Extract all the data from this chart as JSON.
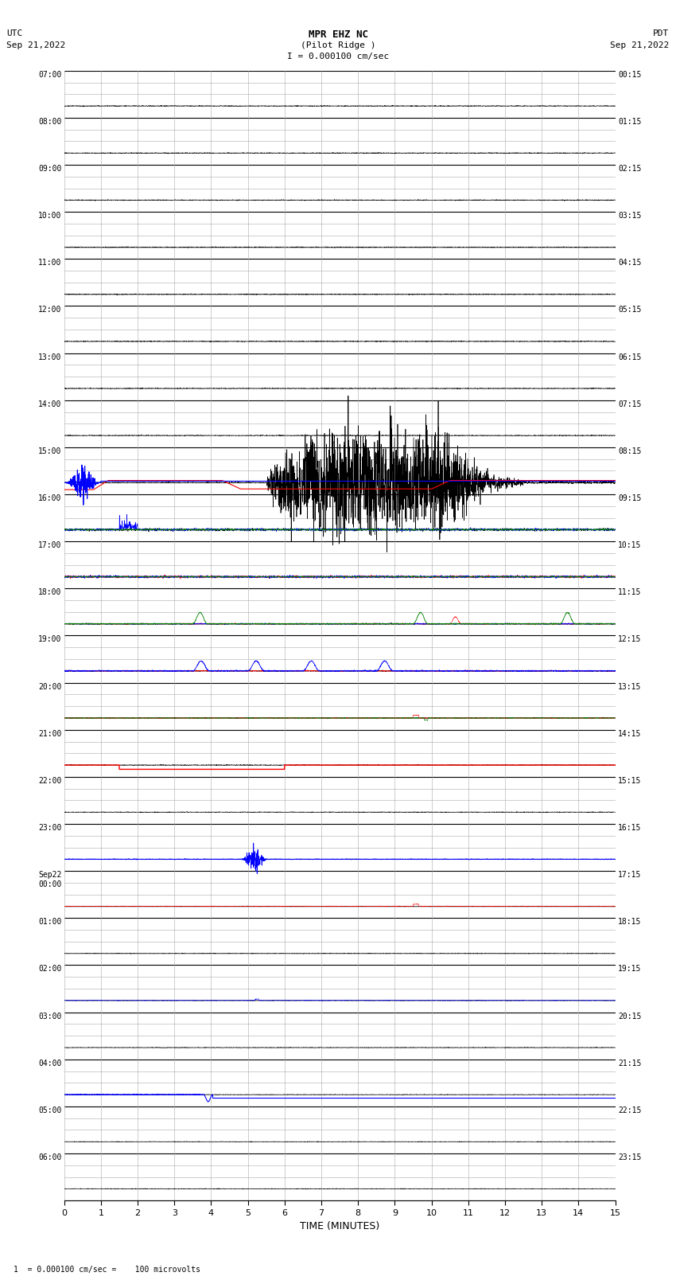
{
  "title_line1": "MPR EHZ NC",
  "title_line2": "(Pilot Ridge )",
  "title_line3": "I = 0.000100 cm/sec",
  "left_header": "UTC",
  "left_date": "Sep 21,2022",
  "right_header": "PDT",
  "right_date": "Sep 21,2022",
  "xlabel": "TIME (MINUTES)",
  "footer": "1  = 0.000100 cm/sec =    100 microvolts",
  "xlim": [
    0,
    15
  ],
  "xticks": [
    0,
    1,
    2,
    3,
    4,
    5,
    6,
    7,
    8,
    9,
    10,
    11,
    12,
    13,
    14,
    15
  ],
  "num_rows": 24,
  "sub_rows": 4,
  "utc_labels": [
    "07:00",
    "08:00",
    "09:00",
    "10:00",
    "11:00",
    "12:00",
    "13:00",
    "14:00",
    "15:00",
    "16:00",
    "17:00",
    "18:00",
    "19:00",
    "20:00",
    "21:00",
    "22:00",
    "23:00",
    "Sep22\n00:00",
    "01:00",
    "02:00",
    "03:00",
    "04:00",
    "05:00",
    "06:00"
  ],
  "pdt_labels": [
    "00:15",
    "01:15",
    "02:15",
    "03:15",
    "04:15",
    "05:15",
    "06:15",
    "07:15",
    "08:15",
    "09:15",
    "10:15",
    "11:15",
    "12:15",
    "13:15",
    "14:15",
    "15:15",
    "16:15",
    "17:15",
    "18:15",
    "19:15",
    "20:15",
    "21:15",
    "22:15",
    "23:15"
  ],
  "bg_color": "#ffffff",
  "grid_major_color": "#000000",
  "grid_minor_color": "#aaaaaa",
  "trace_color_black": "#000000",
  "trace_color_blue": "#0000ff",
  "trace_color_red": "#ff0000",
  "trace_color_green": "#008000"
}
